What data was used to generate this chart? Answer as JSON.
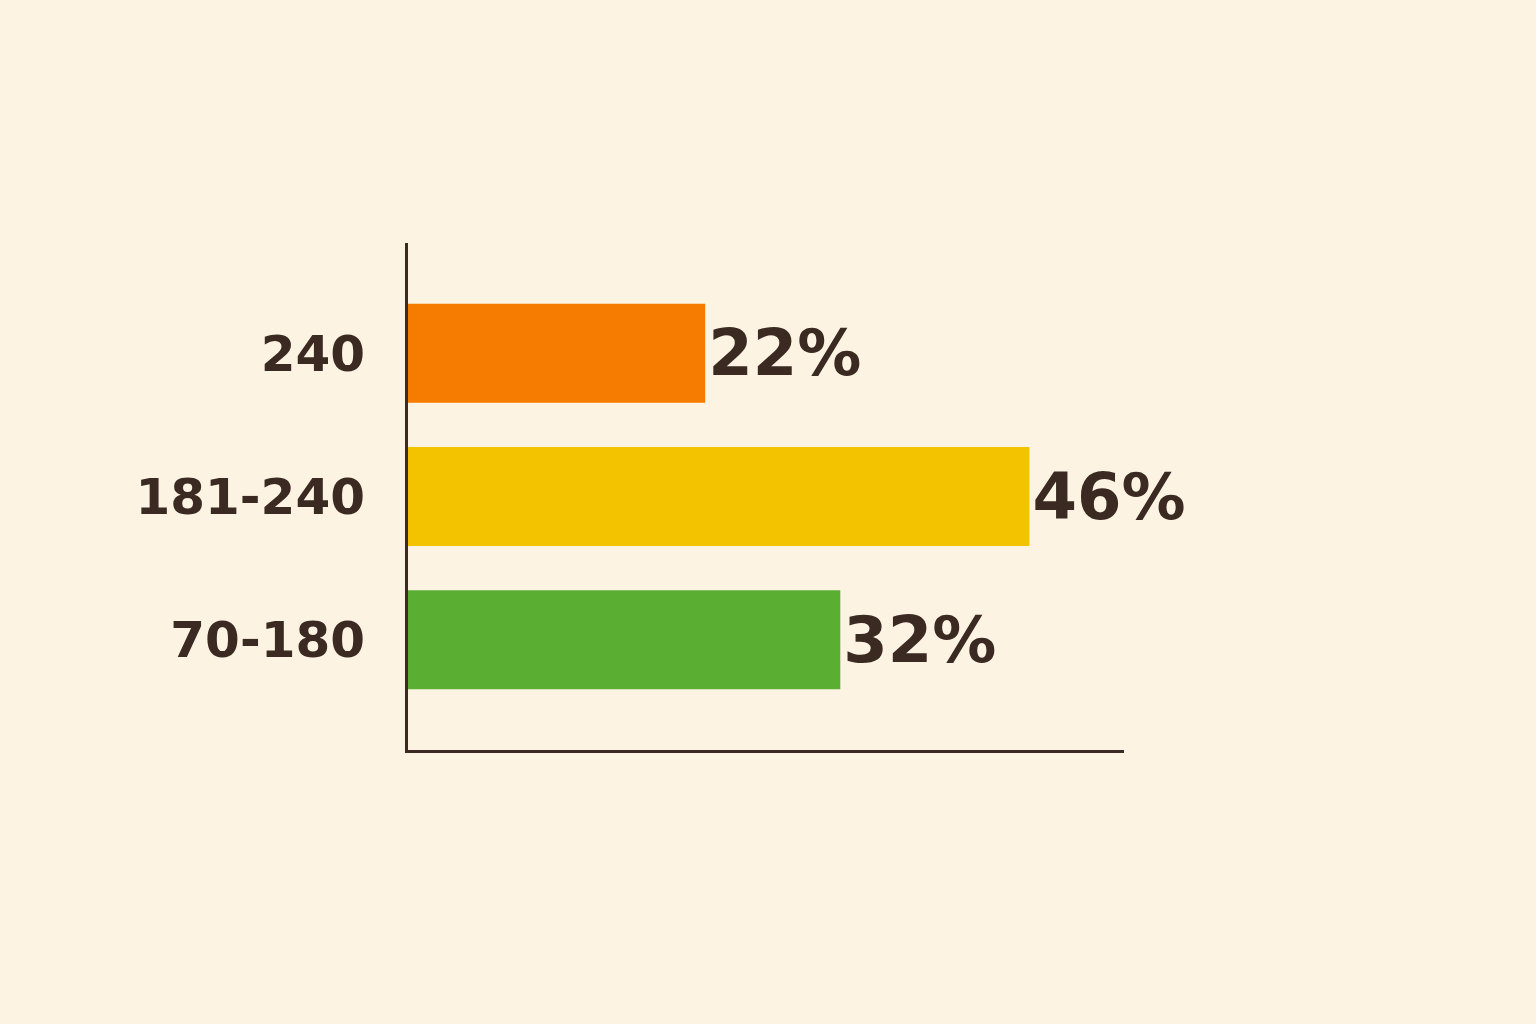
{
  "chart_data": {
    "type": "bar",
    "orientation": "horizontal",
    "categories": [
      "240",
      "181-240",
      "70-180"
    ],
    "values": [
      22,
      46,
      32
    ],
    "colors": [
      "#f57c00",
      "#f4c300",
      "#5aaf32"
    ],
    "value_labels": [
      "22%",
      "46%",
      "32%"
    ],
    "xlim": [
      0,
      53
    ],
    "tick_labels": "y",
    "grid": false
  }
}
